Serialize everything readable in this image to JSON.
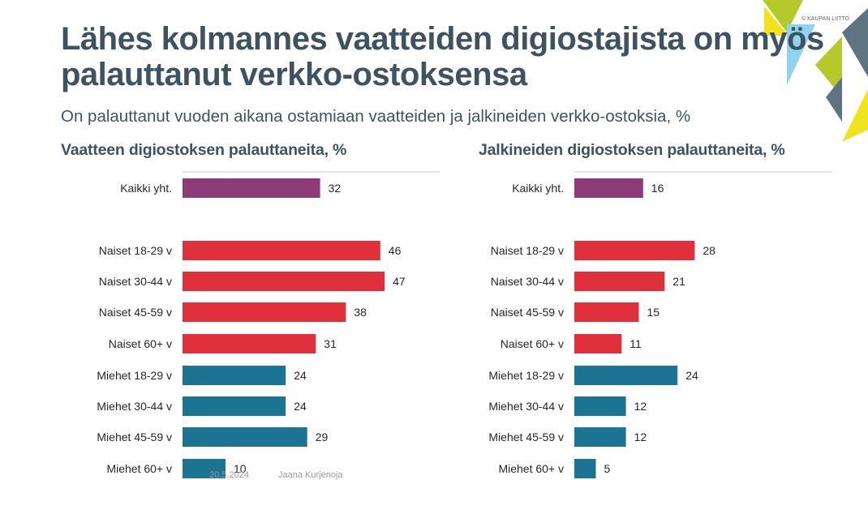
{
  "title": "Lähes kolmannes vaatteiden digiostajista on myös palauttanut verkko-ostoksensa",
  "subtitle": "On palauttanut  vuoden aikana ostamiaan vaatteiden ja jalkineiden verkko-ostoksia, %",
  "copyright": "© KAUPAN LIITTO",
  "footer": {
    "date": "20.5.2024",
    "author": "Jaana Kurjenoja"
  },
  "colors": {
    "text": "#3d5361",
    "all": "#8e3b7a",
    "women": "#e0303b",
    "men": "#1c7493",
    "deco_lime": "#b6c92b",
    "deco_yellow": "#f1e41c",
    "deco_blue": "#8ed3f0",
    "deco_gray": "#5e7480"
  },
  "chart_data": [
    {
      "type": "bar",
      "orientation": "horizontal",
      "title": "Vaatteen digiostoksen palauttaneita, %",
      "xlim": [
        0,
        50
      ],
      "categories": [
        "Kaikki yht.",
        "Naiset 18-29 v",
        "Naiset 30-44 v",
        "Naiset 45-59 v",
        "Naiset 60+ v",
        "Miehet 18-29 v",
        "Miehet 30-44 v",
        "Miehet 45-59 v",
        "Miehet 60+ v"
      ],
      "values": [
        32,
        46,
        47,
        38,
        31,
        24,
        24,
        29,
        10
      ],
      "groups": [
        "all",
        "women",
        "women",
        "women",
        "women",
        "men",
        "men",
        "men",
        "men"
      ],
      "data_labels": [
        "32",
        "46",
        "47",
        "38",
        "31",
        "24",
        "24",
        "29",
        "10"
      ],
      "grid": false
    },
    {
      "type": "bar",
      "orientation": "horizontal",
      "title": "Jalkineiden digiostoksen palauttaneita, %",
      "xlim": [
        0,
        50
      ],
      "categories": [
        "Kaikki yht.",
        "Naiset 18-29 v",
        "Naiset 30-44 v",
        "Naiset 45-59 v",
        "Naiset 60+ v",
        "Miehet 18-29 v",
        "Miehet 30-44 v",
        "Miehet 45-59 v",
        "Miehet 60+ v"
      ],
      "values": [
        16,
        28,
        21,
        15,
        11,
        24,
        12,
        12,
        5
      ],
      "groups": [
        "all",
        "women",
        "women",
        "women",
        "women",
        "men",
        "men",
        "men",
        "men"
      ],
      "data_labels": [
        "16",
        "28",
        "21",
        "15",
        "11",
        "24",
        "12",
        "12",
        "5"
      ],
      "grid": false
    }
  ]
}
